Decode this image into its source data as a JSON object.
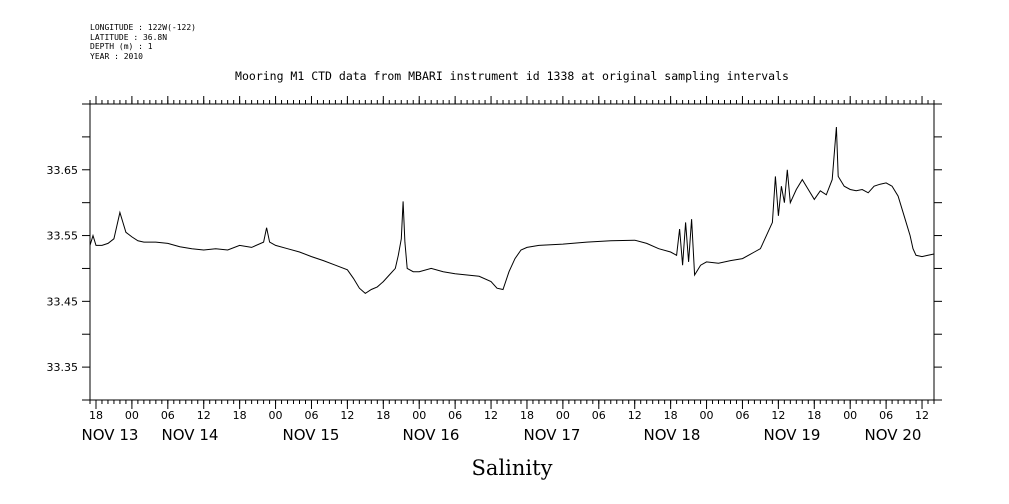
{
  "header": {
    "longitude": "LONGITUDE : 122W(-122)",
    "latitude": "LATITUDE : 36.8N",
    "depth": "DEPTH (m) : 1",
    "year": "YEAR : 2010"
  },
  "chart_data": {
    "type": "line",
    "title": "Mooring M1 CTD data from MBARI instrument id 1338 at original sampling intervals",
    "xlabel": "Salinity",
    "ylabel": "",
    "x_unit": "hours since NOV 13 00:00",
    "xlim": [
      -7,
      134
    ],
    "ylim": [
      33.3,
      33.75
    ],
    "y_ticks": [
      33.35,
      33.45,
      33.55,
      33.65
    ],
    "y_tick_labels": [
      "33.35",
      "33.45",
      "33.55",
      "33.65"
    ],
    "x_ticks": [
      -6,
      0,
      6,
      12,
      18,
      24,
      30,
      36,
      42,
      48,
      54,
      60,
      66,
      72,
      78,
      84,
      90,
      96,
      102,
      108,
      114,
      120,
      126,
      132
    ],
    "x_tick_labels": [
      "18",
      "00",
      "06",
      "12",
      "18",
      "00",
      "06",
      "12",
      "18",
      "00",
      "06",
      "12",
      "18",
      "00",
      "06",
      "12",
      "18",
      "00",
      "06",
      "12",
      "18",
      "00",
      "06",
      "12"
    ],
    "day_labels": [
      {
        "x": 0,
        "label": "NOV 13"
      },
      {
        "x": 24,
        "label": "NOV 14"
      },
      {
        "x": 48,
        "label": "NOV 15"
      },
      {
        "x": 72,
        "label": "NOV 16"
      },
      {
        "x": 96,
        "label": "NOV 17"
      },
      {
        "x": 120,
        "label": "NOV 18"
      },
      {
        "x": 144,
        "label": "NOV 19"
      },
      {
        "x": 168,
        "label": "NOV 20"
      }
    ],
    "grid": false,
    "series": [
      {
        "values": [
          [
            -7,
            33.535
          ],
          [
            -6.5,
            33.55
          ],
          [
            -6,
            33.535
          ],
          [
            -5,
            33.535
          ],
          [
            -4,
            33.538
          ],
          [
            -3,
            33.545
          ],
          [
            -2,
            33.585
          ],
          [
            -1.5,
            33.57
          ],
          [
            -1,
            33.555
          ],
          [
            0,
            33.548
          ],
          [
            1,
            33.542
          ],
          [
            2,
            33.54
          ],
          [
            4,
            33.54
          ],
          [
            6,
            33.538
          ],
          [
            8,
            33.533
          ],
          [
            10,
            33.53
          ],
          [
            12,
            33.528
          ],
          [
            14,
            33.53
          ],
          [
            16,
            33.528
          ],
          [
            18,
            33.535
          ],
          [
            20,
            33.532
          ],
          [
            22,
            33.54
          ],
          [
            22.5,
            33.562
          ],
          [
            23,
            33.54
          ],
          [
            24,
            33.535
          ],
          [
            26,
            33.53
          ],
          [
            28,
            33.525
          ],
          [
            30,
            33.518
          ],
          [
            32,
            33.512
          ],
          [
            34,
            33.505
          ],
          [
            36,
            33.498
          ],
          [
            37,
            33.485
          ],
          [
            38,
            33.47
          ],
          [
            39,
            33.462
          ],
          [
            40,
            33.468
          ],
          [
            41,
            33.472
          ],
          [
            42,
            33.48
          ],
          [
            43,
            33.49
          ],
          [
            44,
            33.5
          ],
          [
            44.5,
            33.52
          ],
          [
            45,
            33.545
          ],
          [
            45.3,
            33.602
          ],
          [
            45.6,
            33.54
          ],
          [
            46,
            33.5
          ],
          [
            47,
            33.495
          ],
          [
            48,
            33.495
          ],
          [
            50,
            33.5
          ],
          [
            52,
            33.495
          ],
          [
            54,
            33.492
          ],
          [
            56,
            33.49
          ],
          [
            58,
            33.488
          ],
          [
            60,
            33.48
          ],
          [
            61,
            33.47
          ],
          [
            62,
            33.468
          ],
          [
            63,
            33.495
          ],
          [
            64,
            33.515
          ],
          [
            65,
            33.528
          ],
          [
            66,
            33.532
          ],
          [
            68,
            33.535
          ],
          [
            72,
            33.537
          ],
          [
            76,
            33.54
          ],
          [
            80,
            33.542
          ],
          [
            84,
            33.543
          ],
          [
            86,
            33.538
          ],
          [
            88,
            33.53
          ],
          [
            90,
            33.525
          ],
          [
            91,
            33.52
          ],
          [
            91.5,
            33.56
          ],
          [
            92,
            33.505
          ],
          [
            92.5,
            33.57
          ],
          [
            93,
            33.51
          ],
          [
            93.5,
            33.575
          ],
          [
            94,
            33.49
          ],
          [
            95,
            33.505
          ],
          [
            96,
            33.51
          ],
          [
            98,
            33.508
          ],
          [
            100,
            33.512
          ],
          [
            102,
            33.515
          ],
          [
            104,
            33.525
          ],
          [
            105,
            33.53
          ],
          [
            106,
            33.55
          ],
          [
            107,
            33.57
          ],
          [
            107.5,
            33.64
          ],
          [
            108,
            33.58
          ],
          [
            108.5,
            33.625
          ],
          [
            109,
            33.6
          ],
          [
            109.5,
            33.65
          ],
          [
            110,
            33.6
          ],
          [
            111,
            33.62
          ],
          [
            112,
            33.635
          ],
          [
            113,
            33.62
          ],
          [
            114,
            33.605
          ],
          [
            115,
            33.618
          ],
          [
            116,
            33.612
          ],
          [
            117,
            33.635
          ],
          [
            117.7,
            33.715
          ],
          [
            118,
            33.64
          ],
          [
            119,
            33.625
          ],
          [
            120,
            33.62
          ],
          [
            121,
            33.618
          ],
          [
            122,
            33.62
          ],
          [
            123,
            33.615
          ],
          [
            124,
            33.625
          ],
          [
            125,
            33.628
          ],
          [
            126,
            33.63
          ],
          [
            127,
            33.625
          ],
          [
            128,
            33.61
          ],
          [
            129,
            33.58
          ],
          [
            130,
            33.55
          ],
          [
            130.5,
            33.53
          ],
          [
            131,
            33.52
          ],
          [
            132,
            33.518
          ],
          [
            133,
            33.52
          ],
          [
            134,
            33.522
          ]
        ]
      }
    ]
  }
}
